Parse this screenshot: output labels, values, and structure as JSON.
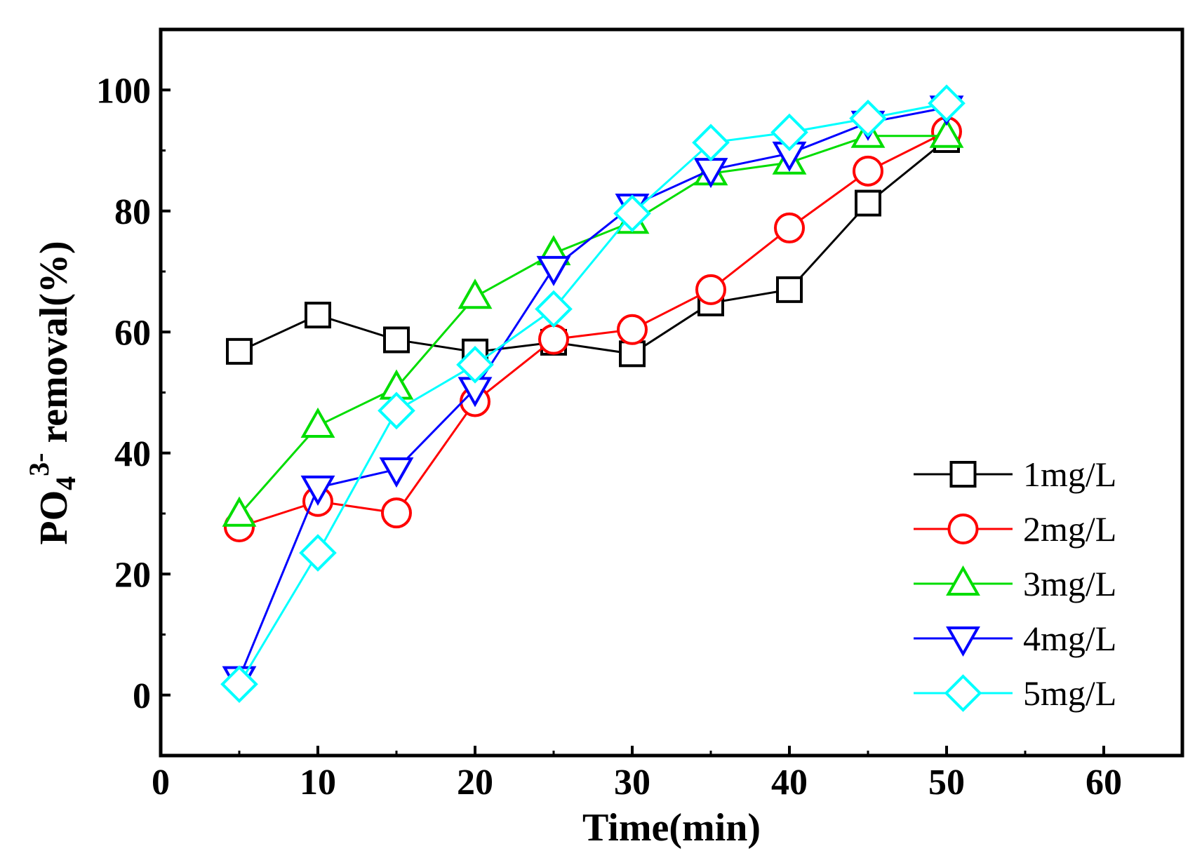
{
  "chart_data": {
    "type": "line",
    "xlabel": "Time(min)",
    "ylabel": {
      "base": "PO",
      "sub": "4",
      "sup": "3-",
      "rest": " removal(%)"
    },
    "xlim": [
      0,
      65
    ],
    "ylim": [
      -10,
      110
    ],
    "xticks": [
      0,
      10,
      20,
      30,
      40,
      50,
      60
    ],
    "yticks": [
      0,
      20,
      40,
      60,
      80,
      100
    ],
    "xtick_labels": [
      "0",
      "10",
      "20",
      "30",
      "40",
      "50",
      "60"
    ],
    "ytick_labels": [
      "0",
      "20",
      "40",
      "60",
      "80",
      "100"
    ],
    "legend_position": "lower-right",
    "grid": false,
    "x": [
      5,
      10,
      15,
      20,
      25,
      30,
      35,
      40,
      45,
      50
    ],
    "series": [
      {
        "name": "1mg/L",
        "color": "#000000",
        "marker": "square",
        "values": [
          56.8,
          62.8,
          58.7,
          56.7,
          58.3,
          56.4,
          64.8,
          67.0,
          81.3,
          91.8
        ]
      },
      {
        "name": "2mg/L",
        "color": "#ff0000",
        "marker": "circle",
        "values": [
          27.8,
          32.0,
          30.1,
          48.5,
          58.8,
          60.4,
          67.0,
          77.2,
          86.6,
          93.1
        ]
      },
      {
        "name": "3mg/L",
        "color": "#00dd00",
        "marker": "triangle-up",
        "values": [
          29.8,
          44.5,
          50.8,
          65.8,
          73.0,
          78.2,
          86.2,
          88.0,
          92.4,
          92.4
        ]
      },
      {
        "name": "4mg/L",
        "color": "#0000ff",
        "marker": "triangle-down",
        "values": [
          2.8,
          34.3,
          37.3,
          50.6,
          70.6,
          80.9,
          86.8,
          89.5,
          94.6,
          97.1
        ]
      },
      {
        "name": "5mg/L",
        "color": "#00ffff",
        "marker": "diamond",
        "values": [
          1.8,
          23.5,
          47.0,
          54.6,
          63.8,
          79.6,
          91.3,
          93.0,
          95.3,
          97.8
        ]
      }
    ]
  }
}
